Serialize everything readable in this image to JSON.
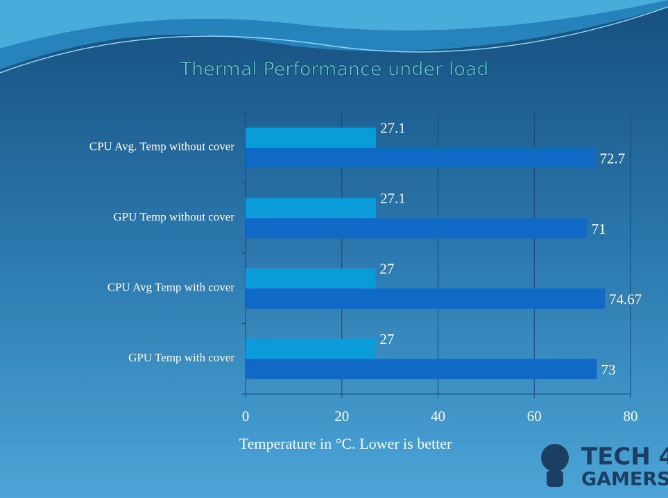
{
  "chart_data": {
    "type": "hbar",
    "title": "Thermal Performance under load",
    "x_label": "Temperature in °C. Lower is better",
    "categories": [
      "CPU Avg. Temp without cover",
      "GPU Temp without cover",
      "CPU Avg Temp with cover",
      "GPU Temp with cover"
    ],
    "series": [
      {
        "color": "#0a9bd9",
        "values": [
          27.1,
          27.1,
          27,
          27
        ]
      },
      {
        "color": "#1169c6",
        "values": [
          72.7,
          71,
          74.67,
          73
        ]
      }
    ],
    "xlim": [
      0,
      80
    ],
    "xticks": [
      0,
      20,
      40,
      60,
      80
    ],
    "grid": true
  },
  "logo": [
    "TECH 4",
    "GAMERS"
  ]
}
